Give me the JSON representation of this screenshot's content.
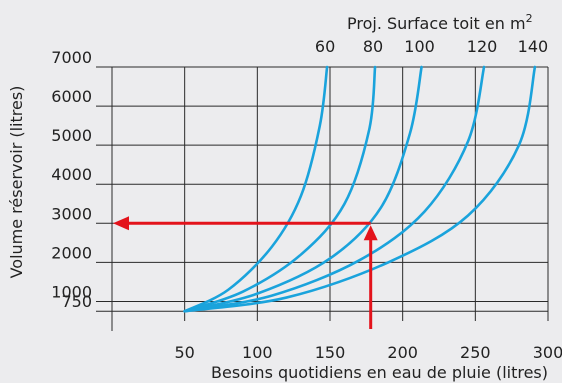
{
  "chart_data": {
    "type": "line",
    "xlabel": "Besoins quotidiens en eau de pluie (litres)",
    "ylabel": "Volume réservoir (litres)",
    "top_label": "Proj. Surface toit en m",
    "top_label_sup": "2",
    "xlim": [
      0,
      300
    ],
    "ylim": [
      500,
      7000
    ],
    "x_ticks": [
      50,
      100,
      150,
      200,
      250,
      300
    ],
    "y_ticks": [
      750,
      1000,
      2000,
      3000,
      4000,
      5000,
      6000,
      7000
    ],
    "grid": true,
    "colors": {
      "curves": "#1aa3dc",
      "annotation": "#e3131b",
      "grid": "#2a2a2a"
    },
    "series": [
      {
        "roof_label": "60",
        "x": [
          50,
          80,
          110,
          130,
          143,
          148
        ],
        "y": [
          750,
          1300,
          2400,
          3700,
          5500,
          7000
        ]
      },
      {
        "roof_label": "80",
        "x": [
          50,
          90,
          130,
          160,
          177,
          181
        ],
        "y": [
          750,
          1250,
          2200,
          3500,
          5400,
          7000
        ]
      },
      {
        "roof_label": "100",
        "x": [
          50,
          100,
          150,
          185,
          205,
          213
        ],
        "y": [
          750,
          1200,
          2100,
          3400,
          5300,
          7000
        ]
      },
      {
        "roof_label": "120",
        "x": [
          50,
          110,
          170,
          215,
          245,
          256
        ],
        "y": [
          750,
          1150,
          2050,
          3300,
          5100,
          7000
        ]
      },
      {
        "roof_label": "140",
        "x": [
          50,
          120,
          190,
          245,
          280,
          291
        ],
        "y": [
          750,
          1100,
          2000,
          3200,
          5000,
          7000
        ]
      }
    ],
    "annotation": {
      "x": 178,
      "y": 3000
    }
  }
}
